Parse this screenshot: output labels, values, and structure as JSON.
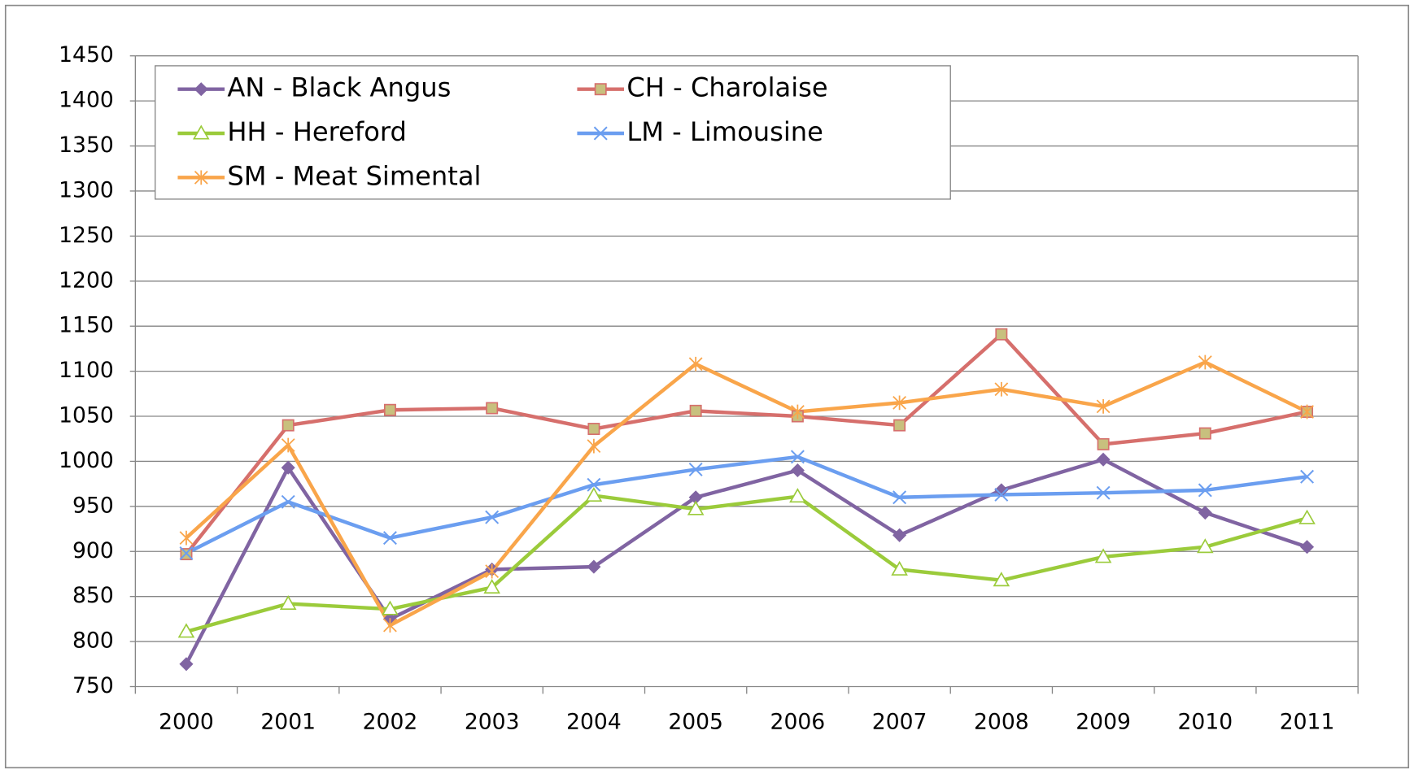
{
  "chart_data": {
    "type": "line",
    "categories": [
      "2000",
      "2001",
      "2002",
      "2003",
      "2004",
      "2005",
      "2006",
      "2007",
      "2008",
      "2009",
      "2010",
      "2011"
    ],
    "series": [
      {
        "name": "AN - Black Angus",
        "color": "#8064a2",
        "marker": "diamond",
        "values": [
          775,
          993,
          825,
          880,
          883,
          960,
          990,
          918,
          968,
          1002,
          943,
          905
        ]
      },
      {
        "name": "CH - Charolaise",
        "color": "#d66f6c",
        "marker": "square",
        "values": [
          897,
          1040,
          1057,
          1059,
          1036,
          1056,
          1050,
          1040,
          1141,
          1019,
          1031,
          1055
        ]
      },
      {
        "name": "HH - Hereford",
        "color": "#9bcb3b",
        "marker": "triangle",
        "values": [
          811,
          842,
          836,
          860,
          962,
          947,
          961,
          880,
          868,
          894,
          905,
          937
        ]
      },
      {
        "name": "LM - Limousine",
        "color": "#6b9ef0",
        "marker": "x",
        "values": [
          898,
          955,
          915,
          938,
          974,
          991,
          1005,
          960,
          963,
          965,
          968,
          983
        ]
      },
      {
        "name": "SM - Meat Simental",
        "color": "#f9a54a",
        "marker": "star",
        "values": [
          915,
          1018,
          818,
          878,
          1017,
          1108,
          1055,
          1065,
          1080,
          1061,
          1110,
          1055
        ]
      }
    ],
    "ylim": [
      750,
      1450
    ],
    "yticks": [
      750,
      800,
      850,
      900,
      950,
      1000,
      1050,
      1100,
      1150,
      1200,
      1250,
      1300,
      1350,
      1400,
      1450
    ],
    "grid": true,
    "legend": "upper-left"
  }
}
